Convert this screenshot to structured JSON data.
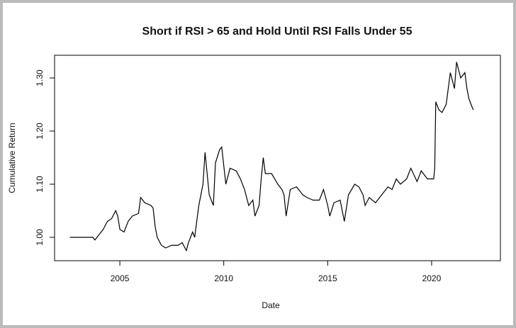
{
  "chart_data": {
    "type": "line",
    "title": "Short if RSI > 65 and Hold Until RSI Falls Under 55",
    "x_label": "Date",
    "y_label": "Cumulative Return",
    "xlim": [
      2001.86,
      2023.31
    ],
    "ylim": [
      0.956,
      1.3427
    ],
    "xticks": [
      2005,
      2010,
      2015,
      2020
    ],
    "yticks": [
      {
        "value": 1.0,
        "label": "1.00"
      },
      {
        "value": 1.1,
        "label": "1.10"
      },
      {
        "value": 1.2,
        "label": "1.20"
      },
      {
        "value": 1.3,
        "label": "1.30"
      }
    ],
    "series": [
      {
        "name": "Cumulative Return",
        "color": "#000000",
        "x": [
          2002.6,
          2003.7,
          2003.8,
          2004.0,
          2004.2,
          2004.4,
          2004.6,
          2004.8,
          2004.9,
          2005.0,
          2005.2,
          2005.4,
          2005.6,
          2005.9,
          2006.0,
          2006.2,
          2006.5,
          2006.6,
          2006.7,
          2006.8,
          2007.0,
          2007.2,
          2007.5,
          2007.8,
          2008.0,
          2008.2,
          2008.3,
          2008.5,
          2008.6,
          2008.8,
          2009.0,
          2009.1,
          2009.3,
          2009.5,
          2009.6,
          2009.8,
          2009.9,
          2010.1,
          2010.3,
          2010.6,
          2010.8,
          2011.0,
          2011.2,
          2011.4,
          2011.5,
          2011.7,
          2011.8,
          2011.9,
          2012.0,
          2012.3,
          2012.6,
          2012.8,
          2012.9,
          2013.0,
          2013.2,
          2013.5,
          2013.8,
          2014.0,
          2014.3,
          2014.6,
          2014.8,
          2015.0,
          2015.1,
          2015.3,
          2015.6,
          2015.8,
          2016.0,
          2016.3,
          2016.5,
          2016.7,
          2016.8,
          2017.0,
          2017.3,
          2017.6,
          2017.9,
          2018.1,
          2018.3,
          2018.5,
          2018.8,
          2019.0,
          2019.3,
          2019.5,
          2019.8,
          2020.1,
          2020.15,
          2020.2,
          2020.35,
          2020.5,
          2020.7,
          2020.8,
          2020.9,
          2021.1,
          2021.2,
          2021.4,
          2021.6,
          2021.7,
          2021.8,
          2022.0
        ],
        "values": [
          1.0,
          1.0,
          0.995,
          1.005,
          1.015,
          1.03,
          1.035,
          1.05,
          1.04,
          1.015,
          1.01,
          1.03,
          1.04,
          1.045,
          1.075,
          1.065,
          1.06,
          1.055,
          1.02,
          1.0,
          0.985,
          0.98,
          0.985,
          0.985,
          0.99,
          0.975,
          0.99,
          1.01,
          1.0,
          1.06,
          1.1,
          1.16,
          1.08,
          1.06,
          1.14,
          1.165,
          1.17,
          1.1,
          1.13,
          1.125,
          1.11,
          1.09,
          1.06,
          1.07,
          1.04,
          1.06,
          1.11,
          1.15,
          1.12,
          1.12,
          1.1,
          1.09,
          1.08,
          1.04,
          1.09,
          1.095,
          1.08,
          1.075,
          1.07,
          1.07,
          1.09,
          1.06,
          1.04,
          1.065,
          1.07,
          1.03,
          1.08,
          1.1,
          1.095,
          1.08,
          1.06,
          1.075,
          1.065,
          1.08,
          1.095,
          1.09,
          1.11,
          1.1,
          1.11,
          1.13,
          1.105,
          1.125,
          1.11,
          1.11,
          1.13,
          1.255,
          1.24,
          1.235,
          1.25,
          1.28,
          1.31,
          1.28,
          1.33,
          1.3,
          1.31,
          1.28,
          1.26,
          1.24
        ]
      }
    ]
  }
}
